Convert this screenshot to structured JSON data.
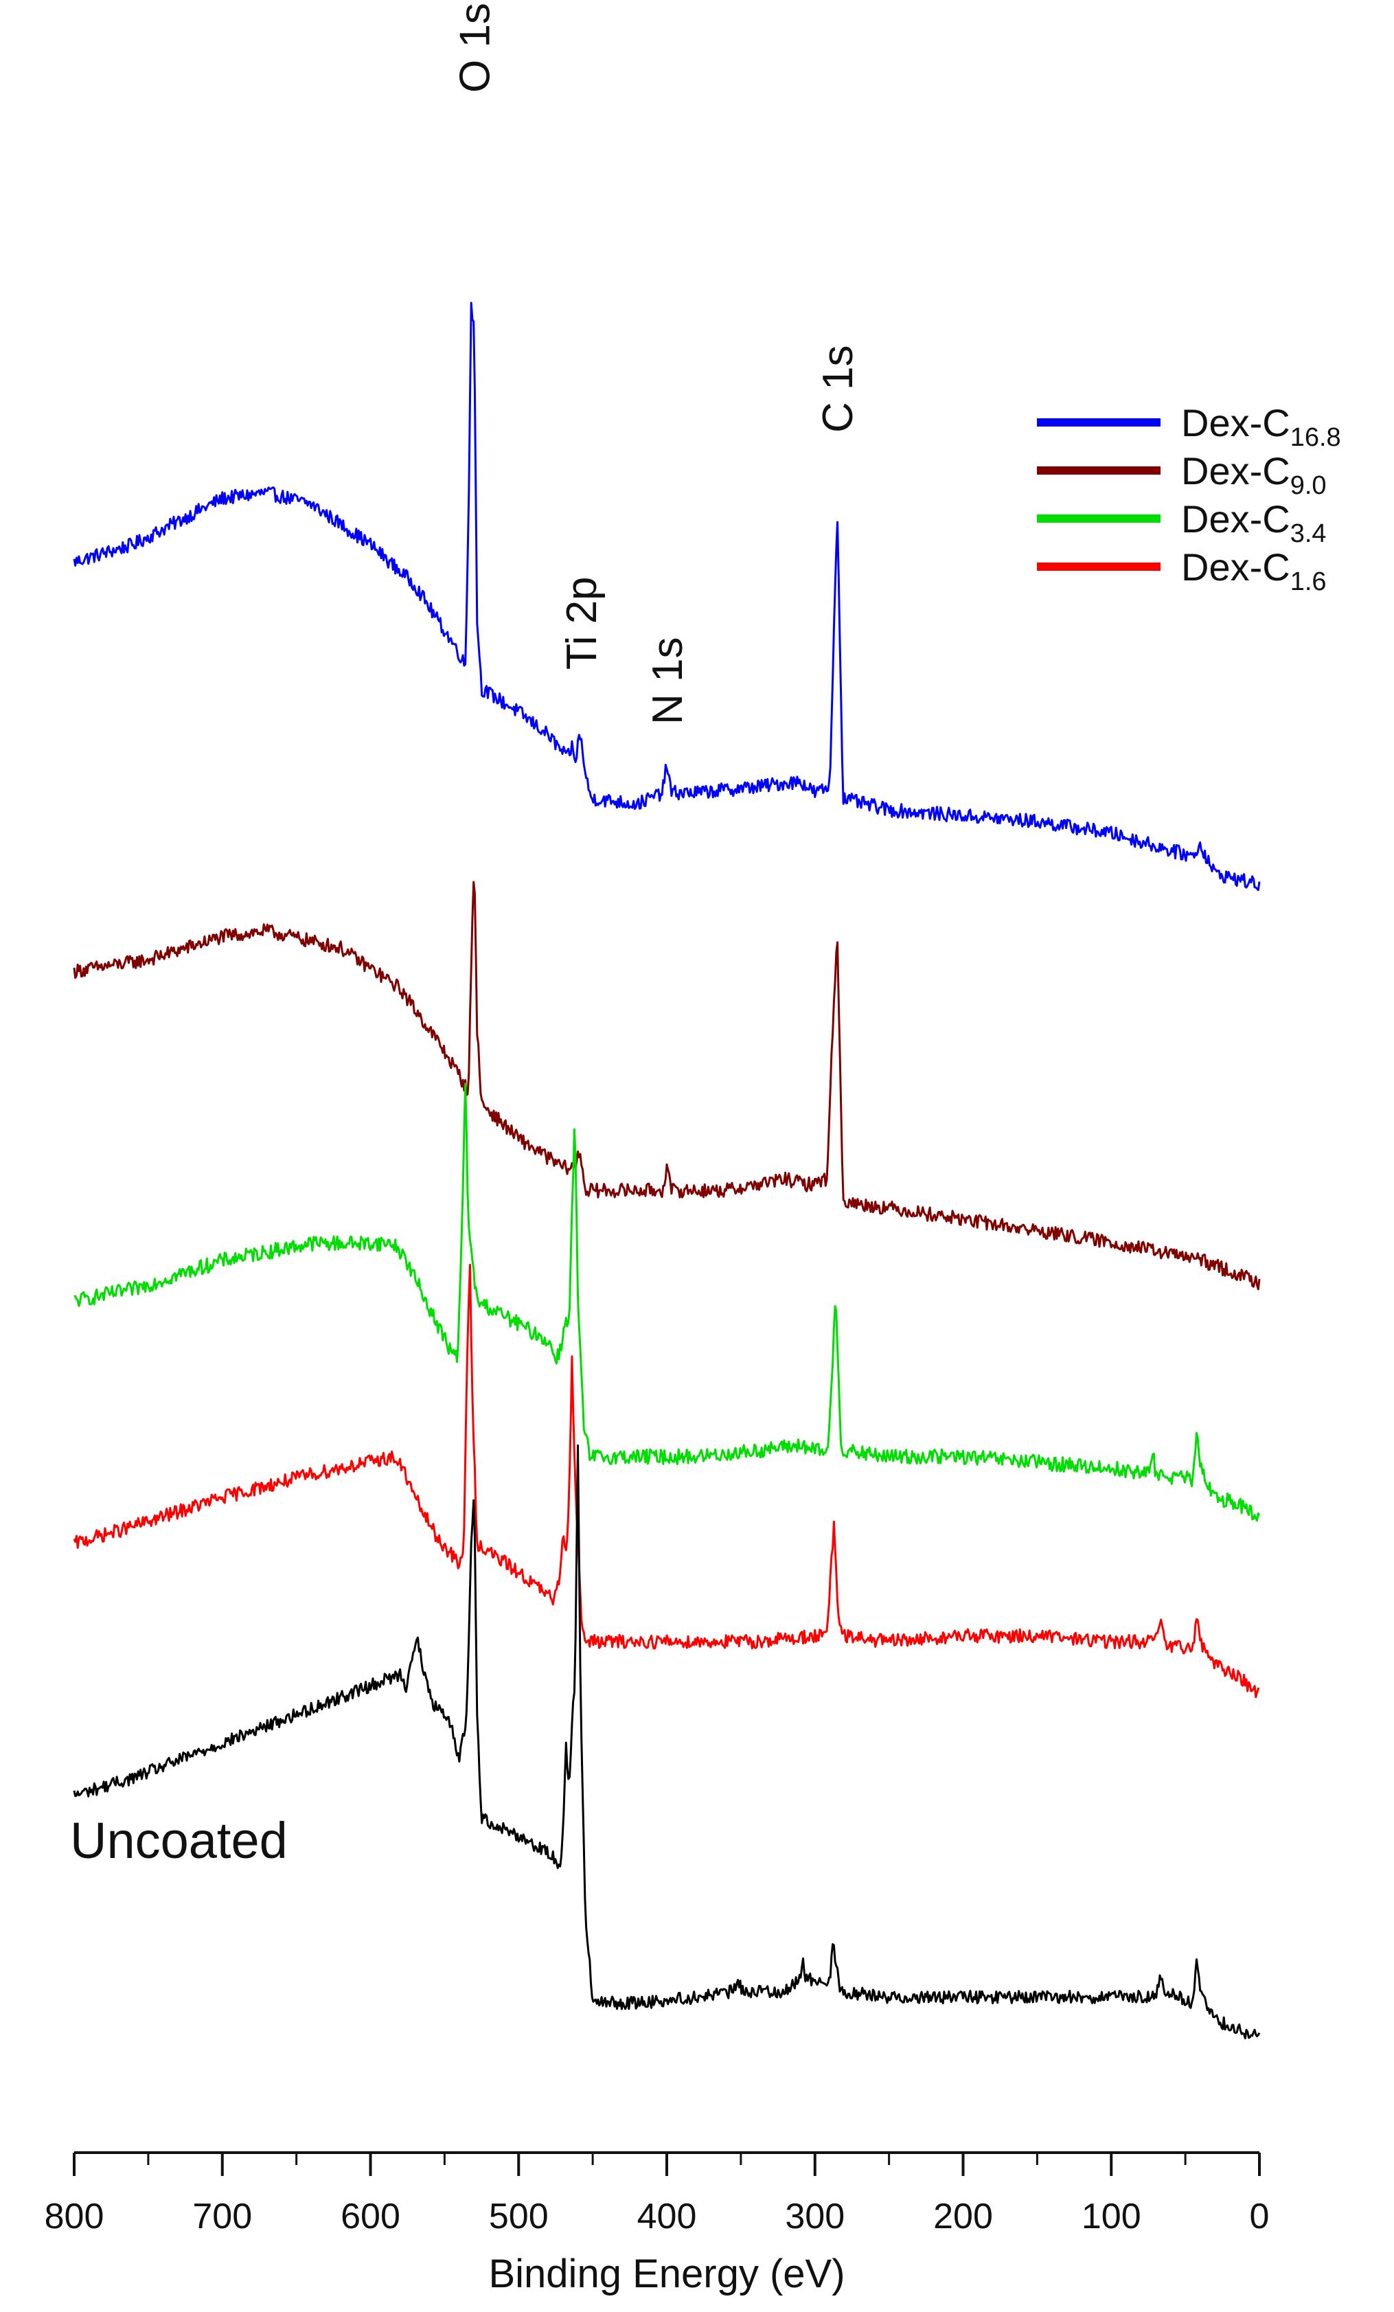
{
  "chart_data": {
    "type": "line",
    "title": "",
    "xlabel": "Binding Energy (eV)",
    "ylabel": "",
    "x_reversed": true,
    "xlim": [
      800,
      0
    ],
    "xticks": [
      "800",
      "700",
      "600",
      "500",
      "400",
      "300",
      "200",
      "100",
      "0"
    ],
    "xtick_values": [
      800,
      700,
      600,
      500,
      400,
      300,
      200,
      100,
      0
    ],
    "y_units": "arbitrary (vertically offset traces)",
    "peak_labels": [
      {
        "text": "O 1s",
        "x": 530
      },
      {
        "text": "Ti 2p",
        "x": 458
      },
      {
        "text": "N 1s",
        "x": 400
      },
      {
        "text": "C 1s",
        "x": 285
      }
    ],
    "legend": {
      "placement": "top-right",
      "entries": [
        {
          "base": "Dex-C",
          "sub": "16.8",
          "color": "#0000ff"
        },
        {
          "base": "Dex-C",
          "sub": "9.0",
          "color": "#800000"
        },
        {
          "base": "Dex-C",
          "sub": "3.4",
          "color": "#00dd00"
        },
        {
          "base": "Dex-C",
          "sub": "1.6",
          "color": "#ff0000"
        }
      ]
    },
    "annotations": [
      {
        "text": "Uncoated",
        "x": 800,
        "series": "Uncoated"
      }
    ],
    "series": [
      {
        "name": "Dex-C16.8",
        "color": "#0000ff",
        "noise": 0.012,
        "points": [
          [
            800,
            0.55
          ],
          [
            760,
            0.58
          ],
          [
            700,
            0.66
          ],
          [
            670,
            0.67
          ],
          [
            640,
            0.65
          ],
          [
            600,
            0.58
          ],
          [
            570,
            0.51
          ],
          [
            555,
            0.45
          ],
          [
            542,
            0.4
          ],
          [
            536,
            0.37
          ],
          [
            534,
            0.6
          ],
          [
            532,
            1.0
          ],
          [
            530,
            0.95
          ],
          [
            528,
            0.45
          ],
          [
            525,
            0.33
          ],
          [
            500,
            0.29
          ],
          [
            480,
            0.25
          ],
          [
            467,
            0.21
          ],
          [
            464,
            0.23
          ],
          [
            462,
            0.2
          ],
          [
            459,
            0.25
          ],
          [
            457,
            0.23
          ],
          [
            455,
            0.18
          ],
          [
            451,
            0.14
          ],
          [
            420,
            0.13
          ],
          [
            403,
            0.15
          ],
          [
            400,
            0.2
          ],
          [
            397,
            0.15
          ],
          [
            380,
            0.15
          ],
          [
            340,
            0.16
          ],
          [
            310,
            0.17
          ],
          [
            300,
            0.15
          ],
          [
            290,
            0.16
          ],
          [
            287,
            0.45
          ],
          [
            285,
            0.64
          ],
          [
            283,
            0.4
          ],
          [
            281,
            0.14
          ],
          [
            250,
            0.12
          ],
          [
            200,
            0.11
          ],
          [
            150,
            0.1
          ],
          [
            100,
            0.08
          ],
          [
            60,
            0.05
          ],
          [
            45,
            0.04
          ],
          [
            40,
            0.06
          ],
          [
            30,
            0.01
          ],
          [
            0,
            -0.01
          ]
        ]
      },
      {
        "name": "Dex-C9.0",
        "color": "#800000",
        "noise": 0.012,
        "points": [
          [
            800,
            0.4
          ],
          [
            750,
            0.42
          ],
          [
            700,
            0.46
          ],
          [
            670,
            0.47
          ],
          [
            620,
            0.44
          ],
          [
            580,
            0.37
          ],
          [
            555,
            0.28
          ],
          [
            540,
            0.22
          ],
          [
            534,
            0.19
          ],
          [
            532,
            0.4
          ],
          [
            530,
            0.6
          ],
          [
            528,
            0.3
          ],
          [
            525,
            0.17
          ],
          [
            500,
            0.11
          ],
          [
            470,
            0.06
          ],
          [
            462,
            0.06
          ],
          [
            459,
            0.09
          ],
          [
            457,
            0.06
          ],
          [
            455,
            0.02
          ],
          [
            420,
            0.02
          ],
          [
            403,
            0.02
          ],
          [
            400,
            0.06
          ],
          [
            397,
            0.02
          ],
          [
            360,
            0.02
          ],
          [
            320,
            0.04
          ],
          [
            305,
            0.03
          ],
          [
            292,
            0.04
          ],
          [
            288,
            0.3
          ],
          [
            285,
            0.46
          ],
          [
            283,
            0.25
          ],
          [
            281,
            0.0
          ],
          [
            250,
            -0.01
          ],
          [
            200,
            -0.03
          ],
          [
            150,
            -0.05
          ],
          [
            100,
            -0.07
          ],
          [
            60,
            -0.09
          ],
          [
            40,
            -0.1
          ],
          [
            0,
            -0.14
          ]
        ]
      },
      {
        "name": "Dex-C3.4",
        "color": "#00dd00",
        "noise": 0.013,
        "points": [
          [
            800,
            0.4
          ],
          [
            760,
            0.42
          ],
          [
            700,
            0.47
          ],
          [
            640,
            0.5
          ],
          [
            585,
            0.5
          ],
          [
            578,
            0.48
          ],
          [
            570,
            0.44
          ],
          [
            555,
            0.36
          ],
          [
            545,
            0.31
          ],
          [
            541,
            0.3
          ],
          [
            538,
            0.55
          ],
          [
            536,
            0.78
          ],
          [
            534,
            0.55
          ],
          [
            532,
            0.48
          ],
          [
            528,
            0.4
          ],
          [
            500,
            0.36
          ],
          [
            480,
            0.33
          ],
          [
            475,
            0.3
          ],
          [
            471,
            0.32
          ],
          [
            468,
            0.38
          ],
          [
            466,
            0.35
          ],
          [
            464,
            0.55
          ],
          [
            462,
            0.72
          ],
          [
            460,
            0.4
          ],
          [
            456,
            0.18
          ],
          [
            452,
            0.13
          ],
          [
            420,
            0.13
          ],
          [
            380,
            0.13
          ],
          [
            340,
            0.14
          ],
          [
            310,
            0.15
          ],
          [
            300,
            0.14
          ],
          [
            291,
            0.14
          ],
          [
            288,
            0.3
          ],
          [
            286,
            0.42
          ],
          [
            284,
            0.26
          ],
          [
            282,
            0.14
          ],
          [
            250,
            0.13
          ],
          [
            200,
            0.13
          ],
          [
            150,
            0.12
          ],
          [
            100,
            0.11
          ],
          [
            75,
            0.1
          ],
          [
            72,
            0.14
          ],
          [
            70,
            0.1
          ],
          [
            45,
            0.09
          ],
          [
            42,
            0.17
          ],
          [
            40,
            0.11
          ],
          [
            30,
            0.06
          ],
          [
            15,
            0.05
          ],
          [
            0,
            0.02
          ]
        ]
      },
      {
        "name": "Dex-C1.6",
        "color": "#ff0000",
        "noise": 0.012,
        "points": [
          [
            800,
            0.42
          ],
          [
            760,
            0.45
          ],
          [
            700,
            0.5
          ],
          [
            640,
            0.54
          ],
          [
            585,
            0.57
          ],
          [
            578,
            0.55
          ],
          [
            570,
            0.5
          ],
          [
            555,
            0.43
          ],
          [
            545,
            0.4
          ],
          [
            540,
            0.38
          ],
          [
            537,
            0.42
          ],
          [
            535,
            0.7
          ],
          [
            533,
            0.92
          ],
          [
            531,
            0.65
          ],
          [
            528,
            0.42
          ],
          [
            500,
            0.37
          ],
          [
            480,
            0.33
          ],
          [
            476,
            0.32
          ],
          [
            473,
            0.35
          ],
          [
            470,
            0.44
          ],
          [
            468,
            0.4
          ],
          [
            466,
            0.5
          ],
          [
            464,
            0.74
          ],
          [
            462,
            0.55
          ],
          [
            458,
            0.3
          ],
          [
            455,
            0.25
          ],
          [
            420,
            0.25
          ],
          [
            380,
            0.25
          ],
          [
            340,
            0.25
          ],
          [
            300,
            0.26
          ],
          [
            292,
            0.26
          ],
          [
            289,
            0.38
          ],
          [
            287,
            0.46
          ],
          [
            285,
            0.32
          ],
          [
            282,
            0.26
          ],
          [
            250,
            0.25
          ],
          [
            200,
            0.26
          ],
          [
            150,
            0.26
          ],
          [
            100,
            0.25
          ],
          [
            70,
            0.25
          ],
          [
            66,
            0.29
          ],
          [
            63,
            0.24
          ],
          [
            45,
            0.24
          ],
          [
            42,
            0.3
          ],
          [
            40,
            0.25
          ],
          [
            30,
            0.21
          ],
          [
            15,
            0.19
          ],
          [
            0,
            0.16
          ]
        ]
      },
      {
        "name": "Uncoated",
        "color": "#000000",
        "noise": 0.011,
        "points": [
          [
            800,
            0.46
          ],
          [
            760,
            0.49
          ],
          [
            700,
            0.55
          ],
          [
            640,
            0.61
          ],
          [
            580,
            0.67
          ],
          [
            576,
            0.65
          ],
          [
            572,
            0.7
          ],
          [
            568,
            0.73
          ],
          [
            565,
            0.68
          ],
          [
            558,
            0.62
          ],
          [
            545,
            0.58
          ],
          [
            540,
            0.52
          ],
          [
            535,
            0.6
          ],
          [
            532,
            0.9
          ],
          [
            530,
            0.98
          ],
          [
            528,
            0.6
          ],
          [
            525,
            0.42
          ],
          [
            500,
            0.39
          ],
          [
            480,
            0.36
          ],
          [
            472,
            0.34
          ],
          [
            470,
            0.4
          ],
          [
            468,
            0.55
          ],
          [
            466,
            0.47
          ],
          [
            464,
            0.58
          ],
          [
            462,
            0.66
          ],
          [
            460,
            1.06
          ],
          [
            458,
            0.6
          ],
          [
            455,
            0.26
          ],
          [
            450,
            0.1
          ],
          [
            420,
            0.1
          ],
          [
            380,
            0.11
          ],
          [
            355,
            0.12
          ],
          [
            352,
            0.14
          ],
          [
            349,
            0.12
          ],
          [
            320,
            0.12
          ],
          [
            310,
            0.14
          ],
          [
            308,
            0.18
          ],
          [
            306,
            0.14
          ],
          [
            290,
            0.14
          ],
          [
            288,
            0.21
          ],
          [
            286,
            0.17
          ],
          [
            283,
            0.12
          ],
          [
            250,
            0.11
          ],
          [
            200,
            0.11
          ],
          [
            150,
            0.11
          ],
          [
            100,
            0.11
          ],
          [
            70,
            0.11
          ],
          [
            67,
            0.15
          ],
          [
            64,
            0.12
          ],
          [
            45,
            0.1
          ],
          [
            42,
            0.18
          ],
          [
            40,
            0.12
          ],
          [
            30,
            0.07
          ],
          [
            20,
            0.06
          ],
          [
            0,
            0.04
          ]
        ]
      }
    ]
  }
}
